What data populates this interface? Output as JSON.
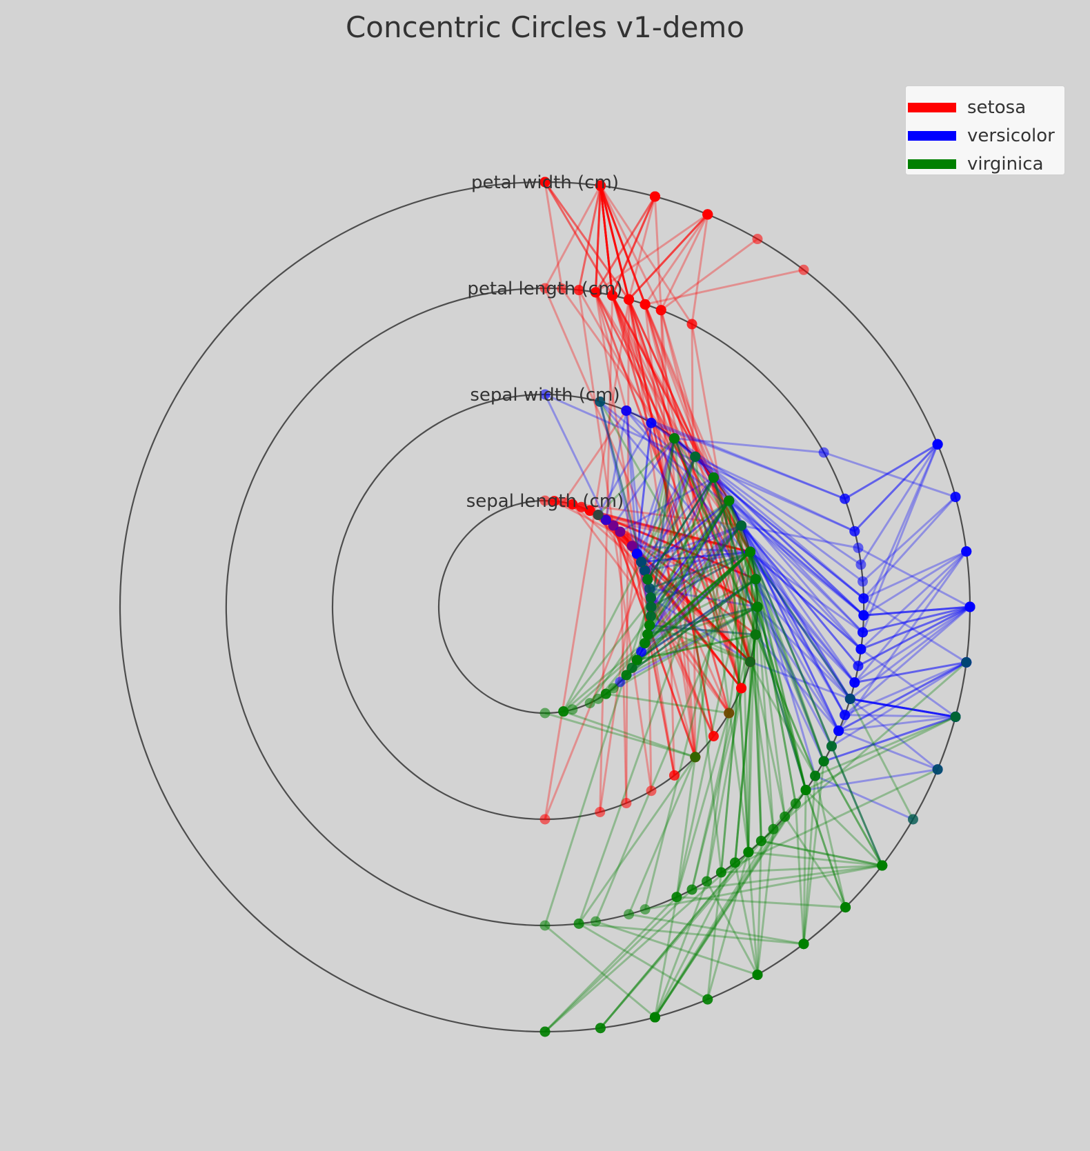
{
  "chart_data": {
    "type": "concentric-circles",
    "title": "Concentric Circles v1-demo",
    "axes": [
      "sepal length (cm)",
      "sepal width (cm)",
      "petal length (cm)",
      "petal width (cm)"
    ],
    "axis_ranges": {
      "sepal length (cm)": [
        4.3,
        7.9
      ],
      "sepal width (cm)": [
        2.0,
        4.4
      ],
      "petal length (cm)": [
        1.0,
        6.9
      ],
      "petal width (cm)": [
        0.1,
        2.5
      ]
    },
    "point_mapping": "value mapped to angle from 90° (top, axis min) clockwise to -90° (bottom, axis max) on each ring",
    "legend": {
      "position": "top-right"
    },
    "species": [
      {
        "name": "setosa",
        "color": "#ff0000"
      },
      {
        "name": "versicolor",
        "color": "#0000ff"
      },
      {
        "name": "virginica",
        "color": "#008000"
      }
    ],
    "samples": [
      [
        5.1,
        3.5,
        1.4,
        0.2,
        0
      ],
      [
        4.9,
        3.0,
        1.4,
        0.2,
        0
      ],
      [
        4.7,
        3.2,
        1.3,
        0.2,
        0
      ],
      [
        4.6,
        3.1,
        1.5,
        0.2,
        0
      ],
      [
        5.0,
        3.6,
        1.4,
        0.2,
        0
      ],
      [
        5.4,
        3.9,
        1.7,
        0.4,
        0
      ],
      [
        4.6,
        3.4,
        1.4,
        0.3,
        0
      ],
      [
        5.0,
        3.4,
        1.5,
        0.2,
        0
      ],
      [
        4.4,
        2.9,
        1.4,
        0.2,
        0
      ],
      [
        4.9,
        3.1,
        1.5,
        0.1,
        0
      ],
      [
        5.4,
        3.7,
        1.5,
        0.2,
        0
      ],
      [
        4.8,
        3.4,
        1.6,
        0.2,
        0
      ],
      [
        4.8,
        3.0,
        1.4,
        0.1,
        0
      ],
      [
        4.3,
        3.0,
        1.1,
        0.1,
        0
      ],
      [
        5.8,
        4.0,
        1.2,
        0.2,
        0
      ],
      [
        5.7,
        4.4,
        1.5,
        0.4,
        0
      ],
      [
        5.4,
        3.9,
        1.3,
        0.4,
        0
      ],
      [
        5.1,
        3.5,
        1.4,
        0.3,
        0
      ],
      [
        5.7,
        3.8,
        1.7,
        0.3,
        0
      ],
      [
        5.1,
        3.8,
        1.5,
        0.3,
        0
      ],
      [
        5.4,
        3.4,
        1.7,
        0.2,
        0
      ],
      [
        5.1,
        3.7,
        1.5,
        0.4,
        0
      ],
      [
        4.6,
        3.6,
        1.0,
        0.2,
        0
      ],
      [
        5.1,
        3.3,
        1.7,
        0.5,
        0
      ],
      [
        4.8,
        3.4,
        1.9,
        0.2,
        0
      ],
      [
        5.0,
        3.0,
        1.6,
        0.2,
        0
      ],
      [
        5.0,
        3.4,
        1.6,
        0.4,
        0
      ],
      [
        5.2,
        3.5,
        1.5,
        0.2,
        0
      ],
      [
        5.2,
        3.4,
        1.4,
        0.2,
        0
      ],
      [
        4.7,
        3.2,
        1.6,
        0.2,
        0
      ],
      [
        4.8,
        3.1,
        1.6,
        0.2,
        0
      ],
      [
        5.4,
        3.4,
        1.5,
        0.4,
        0
      ],
      [
        5.2,
        4.1,
        1.5,
        0.1,
        0
      ],
      [
        5.5,
        4.2,
        1.4,
        0.2,
        0
      ],
      [
        4.9,
        3.1,
        1.5,
        0.2,
        0
      ],
      [
        5.0,
        3.2,
        1.2,
        0.2,
        0
      ],
      [
        5.5,
        3.5,
        1.3,
        0.2,
        0
      ],
      [
        4.9,
        3.6,
        1.4,
        0.1,
        0
      ],
      [
        4.4,
        3.0,
        1.3,
        0.2,
        0
      ],
      [
        5.1,
        3.4,
        1.5,
        0.2,
        0
      ],
      [
        5.0,
        3.5,
        1.3,
        0.3,
        0
      ],
      [
        4.5,
        2.3,
        1.3,
        0.3,
        0
      ],
      [
        4.4,
        3.2,
        1.3,
        0.2,
        0
      ],
      [
        5.0,
        3.5,
        1.6,
        0.6,
        0
      ],
      [
        5.1,
        3.8,
        1.9,
        0.4,
        0
      ],
      [
        4.8,
        3.0,
        1.4,
        0.3,
        0
      ],
      [
        5.1,
        3.8,
        1.6,
        0.2,
        0
      ],
      [
        4.6,
        3.2,
        1.4,
        0.2,
        0
      ],
      [
        5.3,
        3.7,
        1.5,
        0.2,
        0
      ],
      [
        5.0,
        3.3,
        1.4,
        0.2,
        0
      ],
      [
        7.0,
        3.2,
        4.7,
        1.4,
        1
      ],
      [
        6.4,
        3.2,
        4.5,
        1.5,
        1
      ],
      [
        6.9,
        3.1,
        4.9,
        1.5,
        1
      ],
      [
        5.5,
        2.3,
        4.0,
        1.3,
        1
      ],
      [
        6.5,
        2.8,
        4.6,
        1.5,
        1
      ],
      [
        5.7,
        2.8,
        4.5,
        1.3,
        1
      ],
      [
        6.3,
        3.3,
        4.7,
        1.6,
        1
      ],
      [
        4.9,
        2.4,
        3.3,
        1.0,
        1
      ],
      [
        6.6,
        2.9,
        4.6,
        1.3,
        1
      ],
      [
        5.2,
        2.7,
        3.9,
        1.4,
        1
      ],
      [
        5.0,
        2.0,
        3.5,
        1.0,
        1
      ],
      [
        5.9,
        3.0,
        4.2,
        1.5,
        1
      ],
      [
        6.0,
        2.2,
        4.0,
        1.0,
        1
      ],
      [
        6.1,
        2.9,
        4.7,
        1.4,
        1
      ],
      [
        5.6,
        2.9,
        3.6,
        1.3,
        1
      ],
      [
        6.7,
        3.1,
        4.4,
        1.4,
        1
      ],
      [
        5.6,
        3.0,
        4.5,
        1.5,
        1
      ],
      [
        5.8,
        2.7,
        4.1,
        1.0,
        1
      ],
      [
        6.2,
        2.2,
        4.5,
        1.5,
        1
      ],
      [
        5.6,
        2.5,
        3.9,
        1.1,
        1
      ],
      [
        5.9,
        3.2,
        4.8,
        1.8,
        1
      ],
      [
        6.1,
        2.8,
        4.0,
        1.3,
        1
      ],
      [
        6.3,
        2.5,
        4.9,
        1.5,
        1
      ],
      [
        6.1,
        2.8,
        4.7,
        1.2,
        1
      ],
      [
        6.4,
        2.9,
        4.3,
        1.3,
        1
      ],
      [
        6.6,
        3.0,
        4.4,
        1.4,
        1
      ],
      [
        6.8,
        2.8,
        4.8,
        1.4,
        1
      ],
      [
        6.7,
        3.0,
        5.0,
        1.7,
        1
      ],
      [
        6.0,
        2.9,
        4.5,
        1.5,
        1
      ],
      [
        5.7,
        2.6,
        3.5,
        1.0,
        1
      ],
      [
        5.5,
        2.4,
        3.8,
        1.1,
        1
      ],
      [
        5.5,
        2.4,
        3.7,
        1.0,
        1
      ],
      [
        5.8,
        2.7,
        3.9,
        1.2,
        1
      ],
      [
        6.0,
        2.7,
        5.1,
        1.6,
        1
      ],
      [
        5.4,
        3.0,
        4.5,
        1.5,
        1
      ],
      [
        6.0,
        3.4,
        4.5,
        1.6,
        1
      ],
      [
        6.7,
        3.1,
        4.7,
        1.5,
        1
      ],
      [
        6.3,
        2.3,
        4.4,
        1.3,
        1
      ],
      [
        5.6,
        3.0,
        4.1,
        1.3,
        1
      ],
      [
        5.5,
        2.5,
        4.0,
        1.3,
        1
      ],
      [
        5.5,
        2.6,
        4.4,
        1.2,
        1
      ],
      [
        6.1,
        3.0,
        4.6,
        1.4,
        1
      ],
      [
        5.8,
        2.6,
        4.0,
        1.2,
        1
      ],
      [
        5.0,
        2.3,
        3.3,
        1.0,
        1
      ],
      [
        5.6,
        2.7,
        4.2,
        1.3,
        1
      ],
      [
        5.7,
        3.0,
        4.2,
        1.2,
        1
      ],
      [
        5.7,
        2.9,
        4.2,
        1.3,
        1
      ],
      [
        6.2,
        2.9,
        4.3,
        1.3,
        1
      ],
      [
        5.1,
        2.5,
        3.0,
        1.1,
        1
      ],
      [
        5.7,
        2.8,
        4.1,
        1.3,
        1
      ],
      [
        6.3,
        3.3,
        6.0,
        2.5,
        2
      ],
      [
        5.8,
        2.7,
        5.1,
        1.9,
        2
      ],
      [
        7.1,
        3.0,
        5.9,
        2.1,
        2
      ],
      [
        6.3,
        2.9,
        5.6,
        1.8,
        2
      ],
      [
        6.5,
        3.0,
        5.8,
        2.2,
        2
      ],
      [
        7.6,
        3.0,
        6.6,
        2.1,
        2
      ],
      [
        4.9,
        2.5,
        4.5,
        1.7,
        2
      ],
      [
        7.3,
        2.9,
        6.3,
        1.8,
        2
      ],
      [
        6.7,
        2.5,
        5.8,
        1.8,
        2
      ],
      [
        7.2,
        3.6,
        6.1,
        2.5,
        2
      ],
      [
        6.5,
        3.2,
        5.1,
        2.0,
        2
      ],
      [
        6.4,
        2.7,
        5.3,
        1.9,
        2
      ],
      [
        6.8,
        3.0,
        5.5,
        2.1,
        2
      ],
      [
        5.7,
        2.5,
        5.0,
        2.0,
        2
      ],
      [
        5.8,
        2.8,
        5.1,
        2.4,
        2
      ],
      [
        6.4,
        3.2,
        5.3,
        2.3,
        2
      ],
      [
        6.5,
        3.0,
        5.5,
        1.8,
        2
      ],
      [
        7.7,
        3.8,
        6.7,
        2.2,
        2
      ],
      [
        7.7,
        2.6,
        6.9,
        2.3,
        2
      ],
      [
        6.0,
        2.2,
        5.0,
        1.5,
        2
      ],
      [
        6.9,
        3.2,
        5.7,
        2.3,
        2
      ],
      [
        5.6,
        2.8,
        4.9,
        2.0,
        2
      ],
      [
        7.7,
        2.8,
        6.7,
        2.0,
        2
      ],
      [
        6.3,
        2.7,
        4.9,
        1.8,
        2
      ],
      [
        6.7,
        3.3,
        5.7,
        2.1,
        2
      ],
      [
        7.2,
        3.2,
        6.0,
        1.8,
        2
      ],
      [
        6.2,
        2.8,
        4.8,
        1.8,
        2
      ],
      [
        6.1,
        3.0,
        4.9,
        1.8,
        2
      ],
      [
        6.4,
        2.8,
        5.6,
        2.1,
        2
      ],
      [
        7.2,
        3.0,
        5.8,
        1.6,
        2
      ],
      [
        7.4,
        2.8,
        6.1,
        1.9,
        2
      ],
      [
        7.9,
        3.8,
        6.4,
        2.0,
        2
      ],
      [
        6.4,
        2.8,
        5.6,
        2.2,
        2
      ],
      [
        6.3,
        2.8,
        5.1,
        1.5,
        2
      ],
      [
        6.1,
        2.6,
        5.6,
        1.4,
        2
      ],
      [
        7.7,
        3.0,
        6.1,
        2.3,
        2
      ],
      [
        6.3,
        3.4,
        5.6,
        2.4,
        2
      ],
      [
        6.4,
        3.1,
        5.5,
        1.8,
        2
      ],
      [
        6.0,
        3.0,
        4.8,
        1.8,
        2
      ],
      [
        6.9,
        3.1,
        5.4,
        2.1,
        2
      ],
      [
        6.7,
        3.1,
        5.6,
        2.4,
        2
      ],
      [
        6.9,
        3.1,
        5.1,
        2.3,
        2
      ],
      [
        5.8,
        2.7,
        5.1,
        1.9,
        2
      ],
      [
        6.8,
        3.2,
        5.9,
        2.3,
        2
      ],
      [
        6.7,
        3.3,
        5.7,
        2.5,
        2
      ],
      [
        6.7,
        3.0,
        5.2,
        2.3,
        2
      ],
      [
        6.3,
        2.5,
        5.0,
        1.9,
        2
      ],
      [
        6.5,
        3.0,
        5.2,
        2.0,
        2
      ],
      [
        6.2,
        3.4,
        5.4,
        2.3,
        2
      ],
      [
        5.9,
        3.0,
        5.1,
        1.8,
        2
      ]
    ]
  }
}
